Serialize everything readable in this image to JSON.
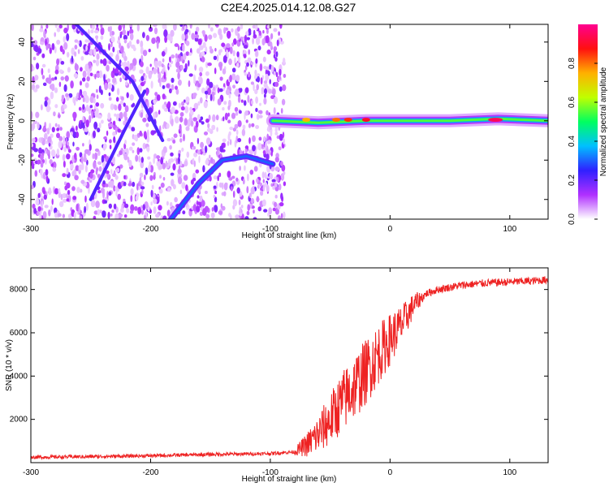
{
  "title": "C2E4.2025.014.12.08.G27",
  "chart_data": [
    {
      "type": "heatmap",
      "title": "",
      "xlabel": "Height of straight line (km)",
      "ylabel": "Frequency (Hz)",
      "xlim": [
        -300,
        132
      ],
      "ylim": [
        -50,
        49
      ],
      "xticks": [
        -300,
        -200,
        -100,
        0,
        100
      ],
      "yticks": [
        -40,
        -20,
        0,
        20,
        40
      ],
      "colorbar": {
        "label": "Normalized spectral amplitude",
        "range": [
          0,
          1
        ],
        "ticks": [
          0.0,
          0.2,
          0.4,
          0.6,
          0.8
        ],
        "colormap": [
          "#ffffff",
          "#b030ff",
          "#3020ff",
          "#00c0ff",
          "#00ff60",
          "#c0ff00",
          "#ffb000",
          "#ff1010",
          "#ff0090"
        ]
      },
      "features": [
        {
          "name": "diagonal trace upper",
          "points": [
            [
              -262,
              49
            ],
            [
              -215,
              20
            ],
            [
              -190,
              -10
            ]
          ]
        },
        {
          "name": "diagonal trace lower",
          "points": [
            [
              -250,
              -40
            ],
            [
              -222,
              -5
            ],
            [
              -205,
              15
            ]
          ]
        },
        {
          "name": "curved trace",
          "points": [
            [
              -183,
              -50
            ],
            [
              -160,
              -32
            ],
            [
              -140,
              -20
            ],
            [
              -120,
              -18
            ],
            [
              -98,
              -22
            ]
          ]
        },
        {
          "name": "carrier line",
          "points": [
            [
              -98,
              0
            ],
            [
              -60,
              -1
            ],
            [
              -20,
              0
            ],
            [
              50,
              0
            ],
            [
              90,
              1
            ],
            [
              132,
              0
            ]
          ]
        }
      ]
    },
    {
      "type": "line",
      "title": "",
      "xlabel": "Height of straight line (km)",
      "ylabel": "SNR (10 * v/v)",
      "xlim": [
        -300,
        132
      ],
      "ylim": [
        0,
        9000
      ],
      "xticks": [
        -300,
        -200,
        -100,
        0,
        100
      ],
      "yticks": [
        2000,
        4000,
        6000,
        8000
      ],
      "series": [
        {
          "color": "#ee2222",
          "x": [
            -300,
            -250,
            -200,
            -150,
            -100,
            -80,
            -70,
            -60,
            -50,
            -40,
            -30,
            -20,
            -10,
            0,
            10,
            20,
            30,
            40,
            60,
            80,
            100,
            120,
            132
          ],
          "y": [
            250,
            280,
            320,
            380,
            420,
            500,
            800,
            1300,
            2000,
            2800,
            3500,
            4200,
            5000,
            5700,
            6400,
            7300,
            7800,
            8000,
            8200,
            8300,
            8350,
            8400,
            8450
          ]
        }
      ]
    }
  ]
}
